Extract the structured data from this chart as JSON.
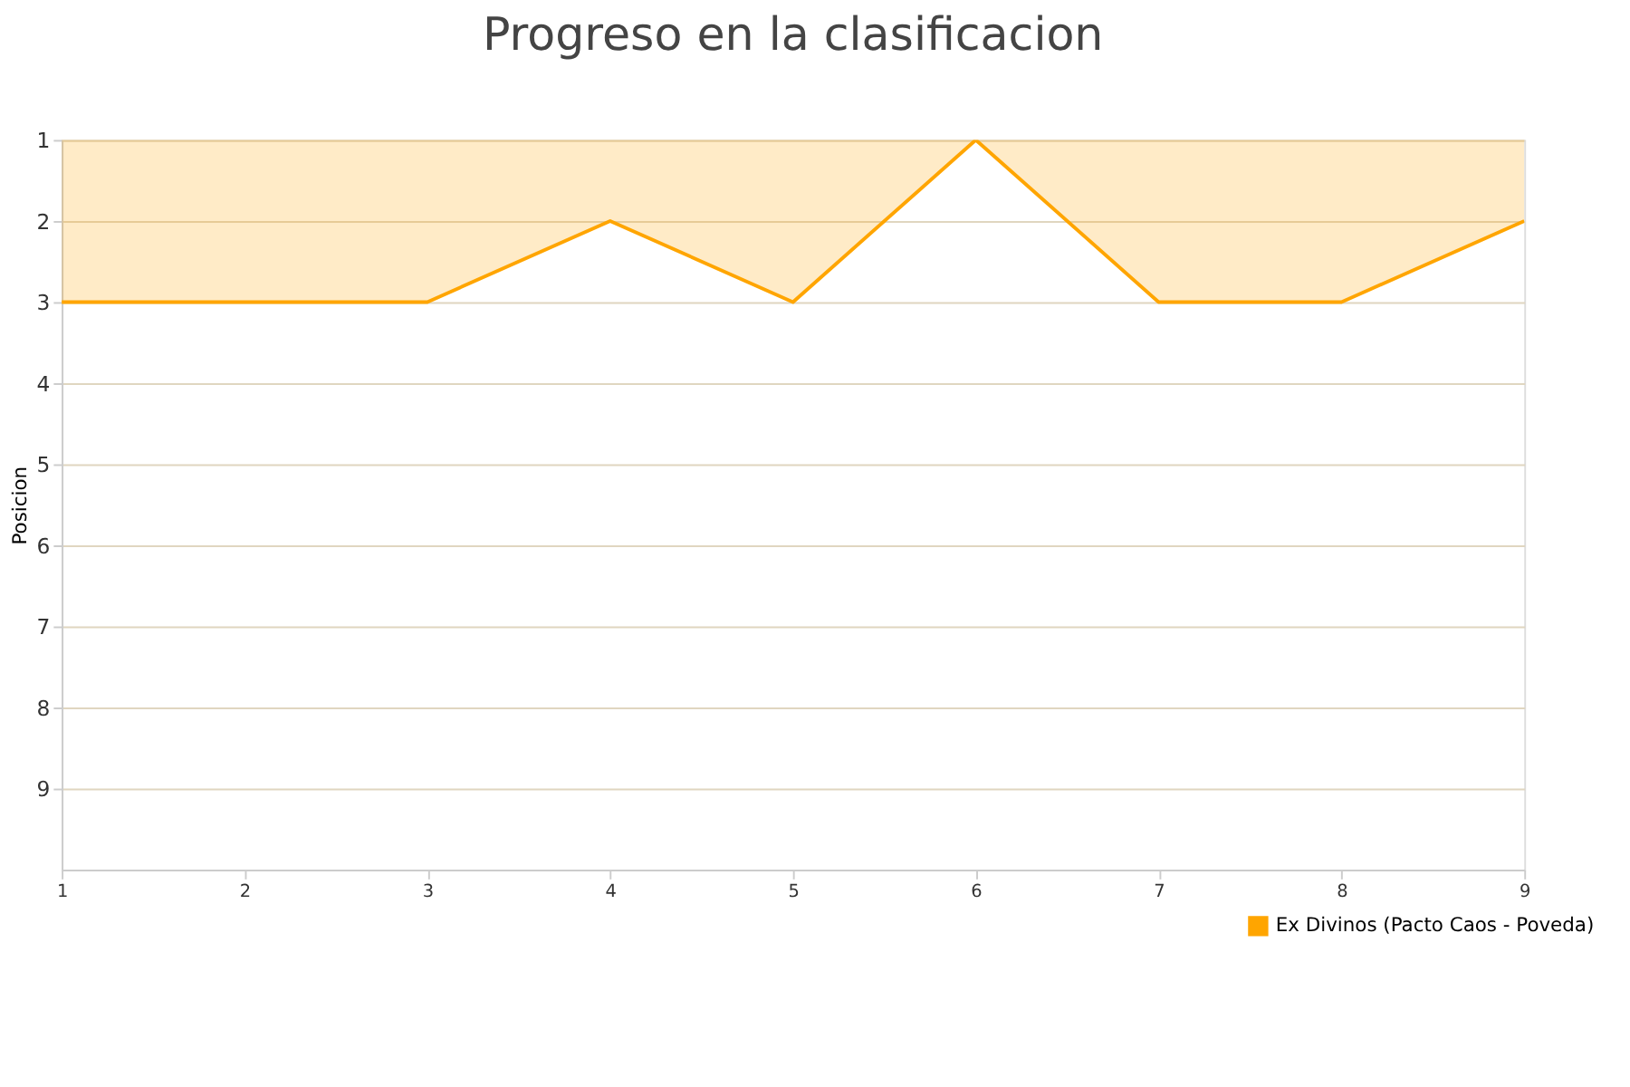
{
  "chart_data": {
    "type": "area",
    "title": "Progreso en la clasificacion",
    "ylabel": "Posicion",
    "x": [
      1,
      2,
      3,
      4,
      5,
      6,
      7,
      8,
      9
    ],
    "series": [
      {
        "name": "Ex Divinos (Pacto Caos - Poveda)",
        "color": "#ffa500",
        "values": [
          3,
          3,
          3,
          2,
          3,
          1,
          3,
          3,
          2
        ]
      }
    ],
    "xlim": [
      1,
      9
    ],
    "xticks": [
      1,
      2,
      3,
      4,
      5,
      6,
      7,
      8,
      9
    ],
    "ylim": [
      10,
      1
    ],
    "yticks": [
      1,
      2,
      3,
      4,
      5,
      6,
      7,
      8,
      9
    ],
    "grid": "y",
    "legend": "bottom right"
  }
}
